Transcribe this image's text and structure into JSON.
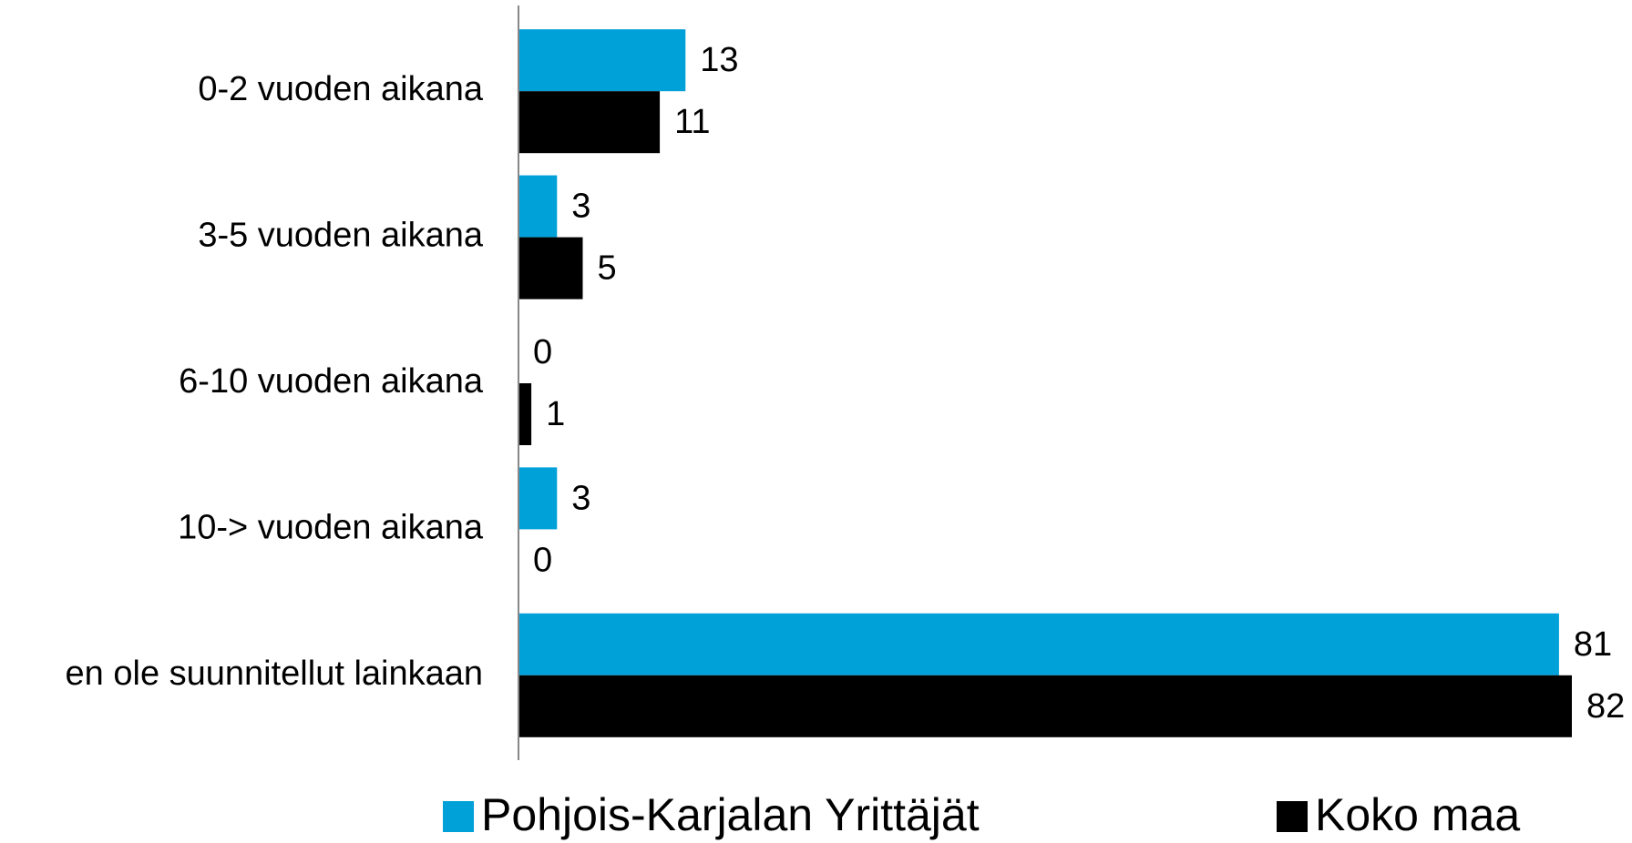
{
  "chart_data": {
    "type": "barh",
    "categories": [
      "0-2 vuoden aikana",
      "3-5 vuoden aikana",
      "6-10 vuoden aikana",
      "10-> vuoden aikana",
      "en ole suunnitellut lainkaan"
    ],
    "series": [
      {
        "name": "Pohjois-Karjalan Yrittäjät",
        "color": "#00a0d8",
        "values": [
          13,
          3,
          0,
          3,
          81
        ]
      },
      {
        "name": "Koko maa",
        "color": "#000000",
        "values": [
          11,
          5,
          1,
          0,
          82
        ]
      }
    ],
    "xlim": [
      0,
      82
    ]
  }
}
